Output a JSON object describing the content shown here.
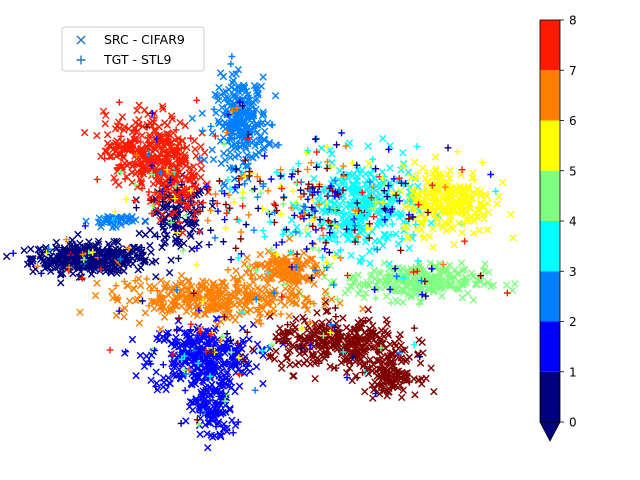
{
  "chart_data": {
    "type": "scatter",
    "title": "",
    "xlabel": "",
    "ylabel": "",
    "axes_visible": false,
    "legend": {
      "placement": "top-left",
      "entries": [
        {
          "label": "SRC - CIFAR9",
          "marker": "x",
          "color": "#1f77b4"
        },
        {
          "label": "TGT - STL9",
          "marker": "+",
          "color": "#1f77b4"
        }
      ]
    },
    "colorbar": {
      "orientation": "vertical",
      "range": [
        0,
        8
      ],
      "ticks": [
        "0",
        "1",
        "2",
        "3",
        "4",
        "5",
        "6",
        "7",
        "8"
      ],
      "extend": "min",
      "colormap": "jet",
      "colors": [
        "#00007f",
        "#0000ff",
        "#007fff",
        "#00ffff",
        "#7fff7f",
        "#ffff00",
        "#ff7f00",
        "#ff1a00",
        "#7f0000"
      ]
    },
    "series": [
      {
        "name": "SRC - CIFAR9",
        "marker": "x"
      },
      {
        "name": "TGT - STL9",
        "marker": "+"
      }
    ],
    "clusters": [
      {
        "label": 0,
        "color": "#00007f",
        "center": [
          -6.6,
          -0.8
        ],
        "spread": [
          1.0,
          0.25
        ],
        "count": 380
      },
      {
        "label": 0,
        "color": "#00007f",
        "center": [
          -3.6,
          0.6
        ],
        "spread": [
          0.5,
          0.6
        ],
        "count": 110
      },
      {
        "label": 1,
        "color": "#0000ff",
        "center": [
          -2.8,
          -4.2
        ],
        "spread": [
          0.9,
          0.55
        ],
        "count": 300
      },
      {
        "label": 1,
        "color": "#0000ff",
        "center": [
          -2.4,
          -6.0
        ],
        "spread": [
          0.35,
          0.6
        ],
        "count": 110
      },
      {
        "label": 2,
        "color": "#007fff",
        "center": [
          -1.4,
          3.9
        ],
        "spread": [
          0.45,
          0.75
        ],
        "count": 240
      },
      {
        "label": 2,
        "color": "#007fff",
        "center": [
          -5.8,
          0.5
        ],
        "spread": [
          0.4,
          0.1
        ],
        "count": 40
      },
      {
        "label": 3,
        "color": "#00ffff",
        "center": [
          2.7,
          1.0
        ],
        "spread": [
          0.9,
          0.8
        ],
        "count": 280
      },
      {
        "label": 4,
        "color": "#7fff7f",
        "center": [
          4.6,
          -1.6
        ],
        "spread": [
          1.2,
          0.3
        ],
        "count": 240
      },
      {
        "label": 5,
        "color": "#ffff00",
        "center": [
          5.7,
          1.2
        ],
        "spread": [
          0.8,
          0.6
        ],
        "count": 220
      },
      {
        "label": 6,
        "color": "#ff7f00",
        "center": [
          -2.5,
          -2.2
        ],
        "spread": [
          1.6,
          0.35
        ],
        "count": 280
      },
      {
        "label": 6,
        "color": "#ff7f00",
        "center": [
          0.0,
          -1.2
        ],
        "spread": [
          0.7,
          0.3
        ],
        "count": 120
      },
      {
        "label": 7,
        "color": "#ff1a00",
        "center": [
          -4.6,
          3.0
        ],
        "spread": [
          0.75,
          0.6
        ],
        "count": 260
      },
      {
        "label": 7,
        "color": "#ff1a00",
        "center": [
          -3.7,
          1.8
        ],
        "spread": [
          0.45,
          0.55
        ],
        "count": 110
      },
      {
        "label": 8,
        "color": "#7f0000",
        "center": [
          2.0,
          -3.8
        ],
        "spread": [
          1.2,
          0.45
        ],
        "count": 300
      },
      {
        "label": 8,
        "color": "#7f0000",
        "center": [
          3.8,
          -4.8
        ],
        "spread": [
          0.45,
          0.35
        ],
        "count": 110
      }
    ]
  }
}
